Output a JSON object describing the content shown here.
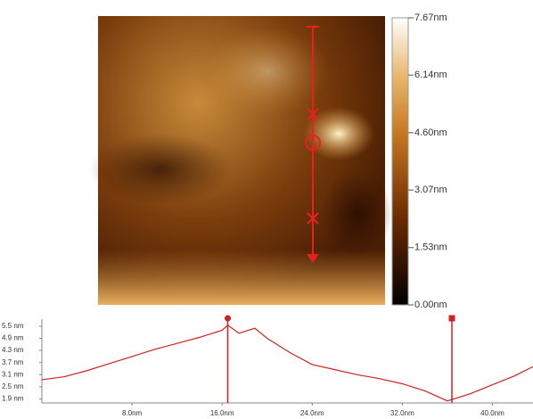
{
  "colorbar": {
    "lim": [
      0,
      7.67
    ],
    "ticks": [
      {
        "value": 7.67,
        "label": "7.67nm"
      },
      {
        "value": 6.14,
        "label": "6.14nm"
      },
      {
        "value": 4.6,
        "label": "4.60nm"
      },
      {
        "value": 3.07,
        "label": "3.07nm"
      },
      {
        "value": 1.53,
        "label": "1.53nm"
      },
      {
        "value": 0,
        "label": "0.00nm"
      }
    ]
  },
  "chart_data": {
    "type": "line",
    "x": [
      0,
      2,
      4,
      6,
      8,
      10,
      12,
      14,
      16,
      16.5,
      17.5,
      18.9,
      20,
      22,
      24,
      26,
      28,
      30,
      32,
      34,
      36,
      38,
      40,
      42,
      43.6
    ],
    "series": [
      {
        "name": null,
        "color": "#d42020",
        "values": [
          2.85,
          3.0,
          3.3,
          3.65,
          4.0,
          4.35,
          4.65,
          4.95,
          5.3,
          5.55,
          5.15,
          5.4,
          4.9,
          4.2,
          3.6,
          3.35,
          3.1,
          2.9,
          2.65,
          2.3,
          1.8,
          2.15,
          2.6,
          3.05,
          3.5
        ]
      }
    ],
    "cursors": [
      16.5,
      36.4
    ],
    "xlim": [
      0,
      43.6
    ],
    "ylim": [
      1.7,
      5.85
    ],
    "xticks": [
      {
        "value": 8,
        "label": "8.0nm"
      },
      {
        "value": 16,
        "label": "16.0nm"
      },
      {
        "value": 24,
        "label": "24.0nm"
      },
      {
        "value": 32,
        "label": "32.0nm"
      },
      {
        "value": 40,
        "label": "40.0nm"
      }
    ],
    "yticks": [
      {
        "value": 5.5,
        "label": "5.5 nm"
      },
      {
        "value": 4.9,
        "label": "4.9 nm"
      },
      {
        "value": 4.3,
        "label": "4.3 nm"
      },
      {
        "value": 3.7,
        "label": "3.7 nm"
      },
      {
        "value": 3.1,
        "label": "3.1 nm"
      },
      {
        "value": 2.5,
        "label": "2.5 nm"
      },
      {
        "value": 1.9,
        "label": "1.9 nm"
      }
    ]
  }
}
